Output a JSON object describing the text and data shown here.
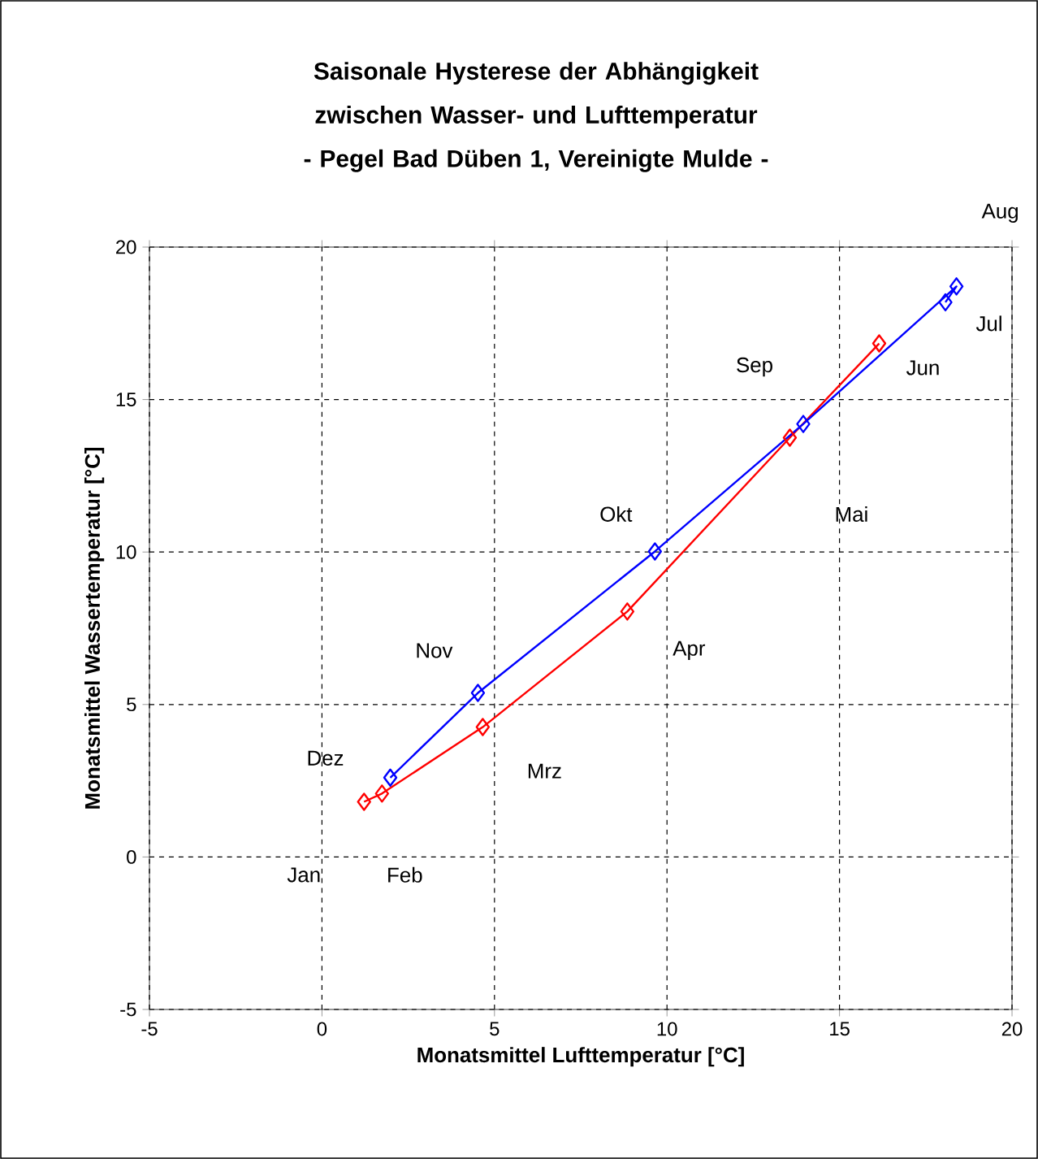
{
  "chart_data": {
    "type": "line",
    "title": "Saisonale Hysterese der Abhängigkeit zwischen Wasser- und Lufttemperatur",
    "subtitle": "- Pegel Bad Düben 1, Vereinigte Mulde -",
    "xlabel": "Monatsmittel Lufttemperatur [°C]",
    "ylabel": "Monatsmittel Wassertemperatur [°C]",
    "series": [
      {
        "color": "#ff0000",
        "x": [
          1.22,
          1.74,
          4.66,
          8.85,
          13.56,
          16.15
        ],
        "values": [
          1.81,
          2.08,
          4.26,
          8.05,
          13.75,
          16.84
        ]
      },
      {
        "color": "#0000ff",
        "x": [
          18.07,
          18.39,
          13.95,
          9.65,
          4.52,
          1.98
        ],
        "values": [
          18.19,
          18.71,
          14.2,
          10.02,
          5.38,
          2.6
        ]
      }
    ],
    "xlim": [
      -5,
      20
    ],
    "ylim": [
      -5,
      20
    ],
    "xticks": [
      -5,
      0,
      5,
      10,
      15,
      20
    ],
    "yticks": [
      -5,
      0,
      5,
      10,
      15,
      20
    ],
    "grid": true,
    "marker": "diamond",
    "line_style": "solid",
    "annotations": [
      "Jan",
      "Feb",
      "Mrz",
      "Apr",
      "Mai",
      "Jun",
      "Jul",
      "Aug",
      "Sep",
      "Okt",
      "Nov",
      "Dez"
    ]
  }
}
